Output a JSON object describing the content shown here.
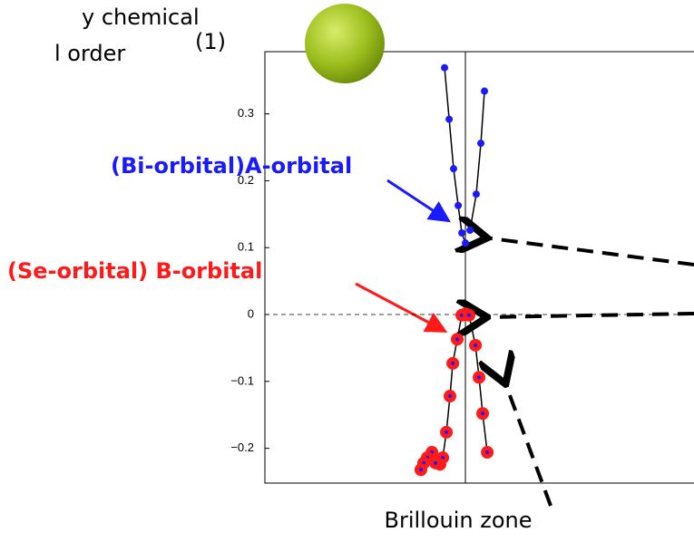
{
  "chart_data": {
    "type": "scatter",
    "xlim": [
      -1,
      1.14
    ],
    "ylim": [
      -0.252,
      0.393
    ],
    "yticks": [
      {
        "value": -0.2,
        "label": "−0.2"
      },
      {
        "value": -0.1,
        "label": "−0.1"
      },
      0,
      0.1,
      0.2,
      0.3
    ],
    "series": [
      {
        "color": "#1a1aff",
        "line": true,
        "x": [
          -0.104,
          -0.081,
          -0.059,
          -0.036,
          -0.018,
          0
        ],
        "values": [
          0.369,
          0.292,
          0.218,
          0.163,
          0.122,
          0.107
        ]
      },
      {
        "color": "#1a1aff",
        "line": true,
        "x": [
          0.023,
          0.054,
          0.077,
          0.095
        ],
        "values": [
          0.126,
          0.18,
          0.256,
          0.334
        ]
      },
      {
        "color": "#ff1a1a",
        "line": true,
        "x": [
          0,
          -0.018,
          -0.041,
          -0.063,
          -0.077,
          -0.095,
          -0.113
        ],
        "values": [
          0.001,
          -0.001,
          -0.037,
          -0.073,
          -0.122,
          -0.176,
          -0.214
        ]
      },
      {
        "color": "#ff1a1a",
        "line": true,
        "x": [
          0.018,
          0.05,
          0.068,
          0.086,
          0.109
        ],
        "values": [
          -0.001,
          -0.046,
          -0.094,
          -0.148,
          -0.206
        ]
      },
      {
        "color": "#ff1a1a",
        "line": false,
        "x": [
          -0.127,
          -0.149,
          -0.167,
          -0.19,
          -0.208,
          -0.222
        ],
        "values": [
          -0.224,
          -0.222,
          -0.206,
          -0.214,
          -0.222,
          -0.232
        ]
      }
    ],
    "annotations": [
      "y chemical",
      "l order",
      "(1)",
      "(Bi-orbital)A-orbital",
      "(Se-orbital) B-orbital",
      "Brillouin zone"
    ]
  }
}
